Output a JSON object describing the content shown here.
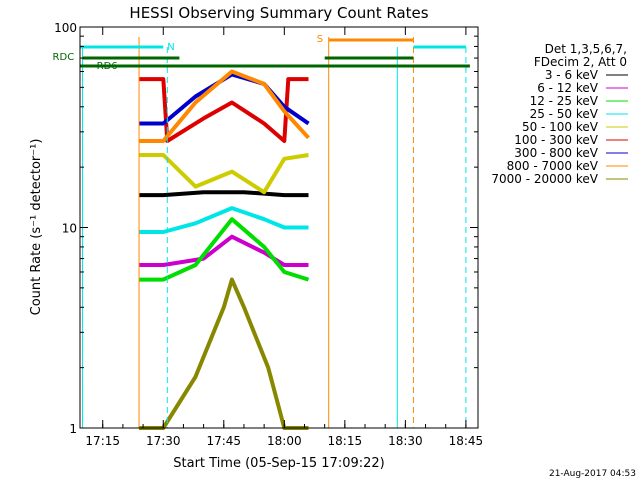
{
  "chart_data": {
    "type": "line",
    "title": "HESSI Observing Summary Count Rates",
    "xlabel": "Start Time (05-Sep-15 17:09:22)",
    "ylabel": "Count Rate (s⁻¹ detector⁻¹)",
    "yscale": "log",
    "ylim": [
      1,
      100
    ],
    "xlim": [
      "17:09:22",
      "18:48:00"
    ],
    "x_ticks": [
      "17:15",
      "17:30",
      "17:45",
      "18:00",
      "18:15",
      "18:30",
      "18:45"
    ],
    "y_ticks": [
      "1",
      "10",
      "100"
    ],
    "grid": false,
    "footer_text": "21-Aug-2017 04:53",
    "legend": {
      "position": "top-right",
      "header": [
        "Det 1,3,5,6,7,",
        "FDecim 2, Att 0"
      ],
      "entries": [
        {
          "label": "3 - 6 keV",
          "color": "#000000"
        },
        {
          "label": "6 - 12 keV",
          "color": "#cc00cc"
        },
        {
          "label": "12 - 25 keV",
          "color": "#00dd00"
        },
        {
          "label": "25 - 50 keV",
          "color": "#00e5e5"
        },
        {
          "label": "50 - 100 keV",
          "color": "#cccc00"
        },
        {
          "label": "100 - 300 keV",
          "color": "#dd0000"
        },
        {
          "label": "300 - 800 keV",
          "color": "#0000cc"
        },
        {
          "label": "800 - 7000 keV",
          "color": "#ff8800"
        },
        {
          "label": "7000 - 20000 keV",
          "color": "#888800"
        }
      ]
    },
    "series": [
      {
        "name": "3 - 6 keV",
        "color": "#000000",
        "t": [
          "17:24",
          "17:30",
          "17:40",
          "17:50",
          "18:00",
          "18:06"
        ],
        "values": [
          14.5,
          14.5,
          15,
          15,
          14.5,
          14.5
        ]
      },
      {
        "name": "6 - 12 keV",
        "color": "#cc00cc",
        "t": [
          "17:24",
          "17:30",
          "17:40",
          "17:47",
          "17:55",
          "18:00",
          "18:06"
        ],
        "values": [
          6.5,
          6.5,
          7,
          9,
          7.5,
          6.5,
          6.5
        ]
      },
      {
        "name": "12 - 25 keV",
        "color": "#00dd00",
        "t": [
          "17:24",
          "17:30",
          "17:38",
          "17:47",
          "17:55",
          "18:00",
          "18:06"
        ],
        "values": [
          5.5,
          5.5,
          6.5,
          11,
          8,
          6,
          5.5
        ]
      },
      {
        "name": "25 - 50 keV",
        "color": "#00e5e5",
        "t": [
          "17:24",
          "17:30",
          "17:38",
          "17:47",
          "17:55",
          "18:00",
          "18:06"
        ],
        "values": [
          9.5,
          9.5,
          10.5,
          12.5,
          11,
          10,
          10
        ]
      },
      {
        "name": "50 - 100 keV",
        "color": "#cccc00",
        "t": [
          "17:24",
          "17:30",
          "17:38",
          "17:47",
          "17:55",
          "18:00",
          "18:06"
        ],
        "values": [
          23,
          23,
          16,
          19,
          15,
          22,
          23
        ]
      },
      {
        "name": "100 - 300 keV",
        "color": "#dd0000",
        "t": [
          "17:24",
          "17:30",
          "17:31",
          "17:40",
          "17:47",
          "17:55",
          "18:00",
          "18:01",
          "18:06"
        ],
        "values": [
          55,
          55,
          27,
          35,
          42,
          33,
          27,
          55,
          55
        ]
      },
      {
        "name": "300 - 800 keV",
        "color": "#0000cc",
        "t": [
          "17:24",
          "17:30",
          "17:38",
          "17:47",
          "17:55",
          "18:00",
          "18:06"
        ],
        "values": [
          33,
          33,
          45,
          58,
          52,
          40,
          33
        ]
      },
      {
        "name": "800 - 7000 keV",
        "color": "#ff8800",
        "t": [
          "17:24",
          "17:30",
          "17:38",
          "17:47",
          "17:55",
          "18:00",
          "18:06"
        ],
        "values": [
          27,
          27,
          42,
          60,
          52,
          38,
          28
        ]
      },
      {
        "name": "7000 - 20000 keV",
        "color": "#888800",
        "t": [
          "17:24",
          "17:30",
          "17:38",
          "17:45",
          "17:47",
          "17:50",
          "17:56",
          "18:00",
          "18:06"
        ],
        "values": [
          1,
          1,
          1.8,
          4,
          5.5,
          4,
          2,
          1,
          1
        ]
      }
    ],
    "annotations": [
      {
        "label": "N",
        "color": "#00e5e5",
        "t": "17:30"
      },
      {
        "label": "S",
        "color": "#ff8800",
        "t": "18:11"
      },
      {
        "label": "RDC",
        "color": "#006600",
        "t": "17:10"
      },
      {
        "label": "RD6",
        "color": "#006600",
        "t": "17:13"
      }
    ],
    "markers": {
      "orange_vertical": [
        "17:24",
        "18:11"
      ],
      "orange_dashed": [
        "18:32"
      ],
      "cyan_vertical": [
        "17:10",
        "18:28"
      ],
      "cyan_dashed": [
        "17:31",
        "18:45"
      ]
    }
  }
}
